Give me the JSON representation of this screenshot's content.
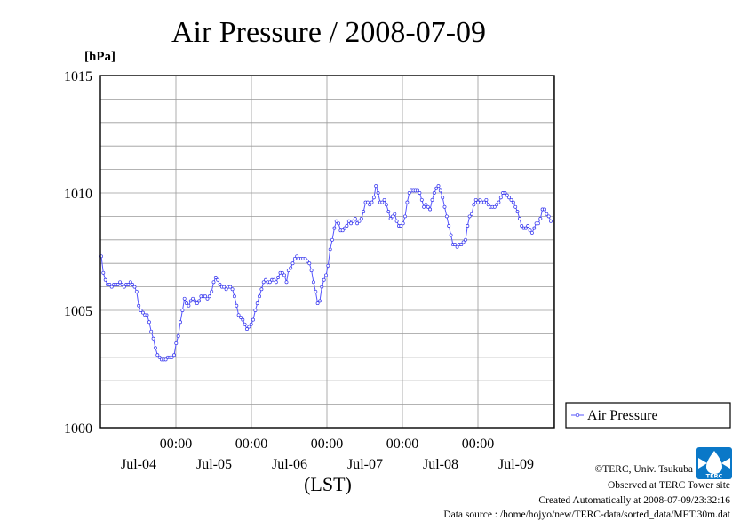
{
  "chart_data": {
    "type": "line",
    "title": "Air Pressure / 2008-07-09",
    "unit_label": "[hPa]",
    "xlabel": "(LST)",
    "ylim": [
      1000,
      1015
    ],
    "yticks": [
      "1000",
      "1005",
      "1010",
      "1015"
    ],
    "x_hour_ticks": [
      "00:00",
      "00:00",
      "00:00",
      "00:00",
      "00:00"
    ],
    "x_day_labels": [
      "Jul-04",
      "Jul-05",
      "Jul-06",
      "Jul-07",
      "Jul-08",
      "Jul-09"
    ],
    "grid": true,
    "legend_position": "right",
    "series": [
      {
        "name": "Air Pressure",
        "color": "#5555ff",
        "values": [
          1007.3,
          1006.6,
          1006.3,
          1006.1,
          1006.1,
          1006.0,
          1006.1,
          1006.1,
          1006.1,
          1006.2,
          1006.1,
          1006.0,
          1006.1,
          1006.1,
          1006.2,
          1006.1,
          1006.0,
          1005.8,
          1005.2,
          1005.0,
          1004.9,
          1004.8,
          1004.8,
          1004.5,
          1004.1,
          1003.8,
          1003.4,
          1003.1,
          1003.0,
          1002.9,
          1002.9,
          1002.9,
          1003.0,
          1003.0,
          1003.0,
          1003.1,
          1003.6,
          1003.9,
          1004.5,
          1005.0,
          1005.5,
          1005.3,
          1005.2,
          1005.4,
          1005.5,
          1005.4,
          1005.3,
          1005.4,
          1005.6,
          1005.6,
          1005.6,
          1005.5,
          1005.6,
          1005.8,
          1006.2,
          1006.4,
          1006.3,
          1006.1,
          1006.0,
          1006.0,
          1005.9,
          1006.0,
          1006.0,
          1005.9,
          1005.6,
          1005.2,
          1004.8,
          1004.7,
          1004.6,
          1004.4,
          1004.2,
          1004.3,
          1004.4,
          1004.6,
          1005.0,
          1005.3,
          1005.6,
          1005.9,
          1006.2,
          1006.3,
          1006.2,
          1006.2,
          1006.3,
          1006.3,
          1006.2,
          1006.4,
          1006.6,
          1006.6,
          1006.5,
          1006.2,
          1006.7,
          1006.8,
          1007.0,
          1007.2,
          1007.3,
          1007.2,
          1007.2,
          1007.2,
          1007.2,
          1007.1,
          1007.0,
          1006.7,
          1006.2,
          1005.8,
          1005.3,
          1005.4,
          1006.0,
          1006.3,
          1006.5,
          1006.9,
          1007.6,
          1008.0,
          1008.5,
          1008.8,
          1008.7,
          1008.4,
          1008.4,
          1008.5,
          1008.6,
          1008.8,
          1008.7,
          1008.8,
          1008.9,
          1008.7,
          1008.8,
          1008.9,
          1009.2,
          1009.6,
          1009.6,
          1009.5,
          1009.6,
          1009.8,
          1010.3,
          1010.0,
          1009.6,
          1009.6,
          1009.7,
          1009.5,
          1009.2,
          1008.9,
          1009.0,
          1009.1,
          1008.8,
          1008.6,
          1008.6,
          1008.7,
          1009.0,
          1009.6,
          1010.0,
          1010.1,
          1010.1,
          1010.1,
          1010.1,
          1010.0,
          1009.7,
          1009.4,
          1009.5,
          1009.4,
          1009.3,
          1009.7,
          1010.0,
          1010.2,
          1010.3,
          1010.1,
          1009.8,
          1009.4,
          1009.0,
          1008.6,
          1008.2,
          1007.8,
          1007.8,
          1007.7,
          1007.8,
          1007.8,
          1007.9,
          1008.0,
          1008.6,
          1009.0,
          1009.1,
          1009.5,
          1009.7,
          1009.6,
          1009.7,
          1009.6,
          1009.6,
          1009.7,
          1009.5,
          1009.4,
          1009.4,
          1009.4,
          1009.5,
          1009.6,
          1009.8,
          1010.0,
          1010.0,
          1009.9,
          1009.8,
          1009.7,
          1009.6,
          1009.4,
          1009.2,
          1008.9,
          1008.6,
          1008.5,
          1008.5,
          1008.6,
          1008.4,
          1008.3,
          1008.5,
          1008.7,
          1008.7,
          1008.9,
          1009.3,
          1009.3,
          1009.1,
          1009.0,
          1008.8
        ]
      }
    ]
  },
  "legend": {
    "label": "Air Pressure"
  },
  "footer": {
    "copyright": "©TERC, Univ. Tsukuba",
    "observed": "Observed at TERC Tower site",
    "created": "Created Automatically at 2008-07-09/23:32:16",
    "source": "Data source : /home/hojyo/new/TERC-data/sorted_data/MET.30m.dat"
  },
  "logo": {
    "text": "TERC",
    "color": "#0a78c8"
  }
}
